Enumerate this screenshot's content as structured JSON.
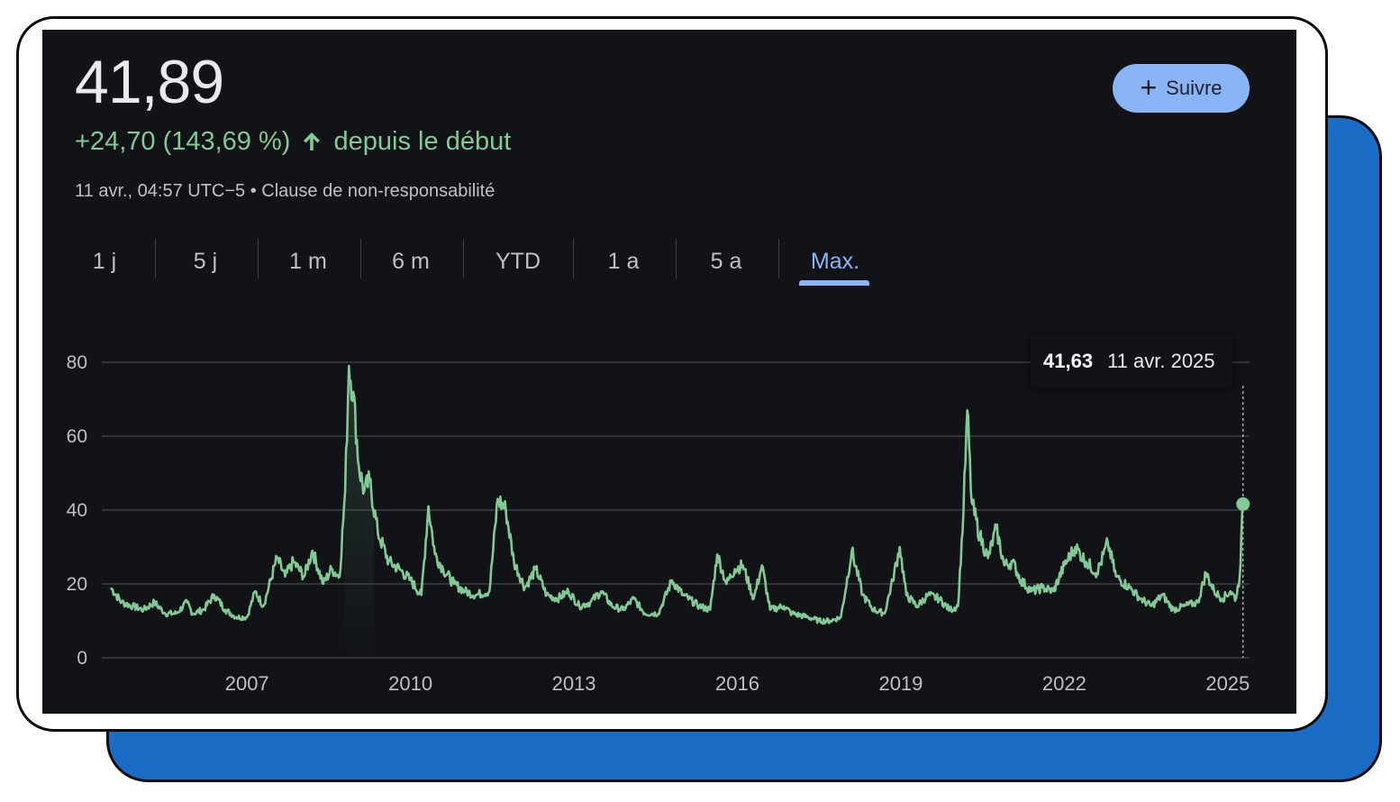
{
  "quote": {
    "price": "41,89",
    "change": "+24,70 (143,69 %)",
    "change_suffix": "depuis le début",
    "timestamp": "11 avr., 04:57 UTC−5 • Clause de non-responsabilité"
  },
  "follow_button": {
    "label": "Suivre",
    "icon": "plus-icon"
  },
  "range_tabs": [
    "1 j",
    "5 j",
    "1 m",
    "6 m",
    "YTD",
    "1 a",
    "5 a",
    "Max."
  ],
  "active_tab": "Max.",
  "tooltip": {
    "value": "41,63",
    "date": "11 avr. 2025"
  },
  "colors": {
    "line": "#81c995",
    "positive": "#81c995",
    "accent": "#8ab4f8",
    "background": "#111317",
    "grid": "#3c4043"
  },
  "chart_data": {
    "type": "line",
    "title": "",
    "xlabel": "",
    "ylabel": "",
    "ylim": [
      0,
      80
    ],
    "xlim": [
      2004.5,
      2025.4
    ],
    "y_ticks": [
      0,
      20,
      40,
      60,
      80
    ],
    "x_ticks": [
      "2007",
      "2010",
      "2013",
      "2016",
      "2019",
      "2022",
      "2025"
    ],
    "grid": "horizontal",
    "series": [
      {
        "values": [
          [
            2004.5,
            19
          ],
          [
            2004.7,
            15
          ],
          [
            2004.9,
            14
          ],
          [
            2005.1,
            13
          ],
          [
            2005.3,
            15
          ],
          [
            2005.5,
            12
          ],
          [
            2005.7,
            12
          ],
          [
            2005.9,
            15
          ],
          [
            2006.0,
            12
          ],
          [
            2006.2,
            13
          ],
          [
            2006.4,
            17
          ],
          [
            2006.6,
            13
          ],
          [
            2006.8,
            11
          ],
          [
            2007.0,
            11
          ],
          [
            2007.15,
            18
          ],
          [
            2007.3,
            14
          ],
          [
            2007.55,
            27
          ],
          [
            2007.7,
            22
          ],
          [
            2007.85,
            26
          ],
          [
            2008.05,
            22
          ],
          [
            2008.2,
            29
          ],
          [
            2008.4,
            20
          ],
          [
            2008.55,
            24
          ],
          [
            2008.7,
            22
          ],
          [
            2008.8,
            45
          ],
          [
            2008.87,
            79
          ],
          [
            2008.95,
            72
          ],
          [
            2009.05,
            52
          ],
          [
            2009.15,
            45
          ],
          [
            2009.25,
            48
          ],
          [
            2009.4,
            34
          ],
          [
            2009.6,
            26
          ],
          [
            2009.8,
            24
          ],
          [
            2010.0,
            21
          ],
          [
            2010.2,
            17
          ],
          [
            2010.33,
            41
          ],
          [
            2010.45,
            28
          ],
          [
            2010.6,
            24
          ],
          [
            2010.8,
            20
          ],
          [
            2011.0,
            18
          ],
          [
            2011.2,
            17
          ],
          [
            2011.45,
            18
          ],
          [
            2011.6,
            43
          ],
          [
            2011.75,
            40
          ],
          [
            2011.9,
            26
          ],
          [
            2012.1,
            19
          ],
          [
            2012.3,
            24
          ],
          [
            2012.5,
            17
          ],
          [
            2012.7,
            16
          ],
          [
            2012.9,
            18
          ],
          [
            2013.1,
            14
          ],
          [
            2013.3,
            15
          ],
          [
            2013.5,
            18
          ],
          [
            2013.7,
            14
          ],
          [
            2013.9,
            13
          ],
          [
            2014.1,
            16
          ],
          [
            2014.3,
            12
          ],
          [
            2014.55,
            12
          ],
          [
            2014.8,
            21
          ],
          [
            2015.0,
            17
          ],
          [
            2015.3,
            14
          ],
          [
            2015.5,
            13
          ],
          [
            2015.63,
            28
          ],
          [
            2015.8,
            20
          ],
          [
            2015.95,
            24
          ],
          [
            2016.1,
            25
          ],
          [
            2016.3,
            16
          ],
          [
            2016.45,
            25
          ],
          [
            2016.6,
            13
          ],
          [
            2016.85,
            14
          ],
          [
            2017.0,
            12
          ],
          [
            2017.3,
            11
          ],
          [
            2017.5,
            10
          ],
          [
            2017.7,
            10
          ],
          [
            2017.9,
            11
          ],
          [
            2018.1,
            29
          ],
          [
            2018.3,
            17
          ],
          [
            2018.5,
            13
          ],
          [
            2018.7,
            12
          ],
          [
            2018.85,
            21
          ],
          [
            2018.98,
            30
          ],
          [
            2019.1,
            17
          ],
          [
            2019.3,
            14
          ],
          [
            2019.5,
            17
          ],
          [
            2019.7,
            16
          ],
          [
            2019.9,
            13
          ],
          [
            2020.05,
            14
          ],
          [
            2020.15,
            40
          ],
          [
            2020.22,
            67
          ],
          [
            2020.3,
            42
          ],
          [
            2020.45,
            33
          ],
          [
            2020.6,
            27
          ],
          [
            2020.75,
            35
          ],
          [
            2020.9,
            25
          ],
          [
            2021.05,
            26
          ],
          [
            2021.2,
            21
          ],
          [
            2021.4,
            18
          ],
          [
            2021.6,
            19
          ],
          [
            2021.8,
            18
          ],
          [
            2022.0,
            25
          ],
          [
            2022.2,
            30
          ],
          [
            2022.4,
            26
          ],
          [
            2022.6,
            23
          ],
          [
            2022.8,
            31
          ],
          [
            2022.95,
            22
          ],
          [
            2023.2,
            19
          ],
          [
            2023.4,
            16
          ],
          [
            2023.6,
            14
          ],
          [
            2023.8,
            17
          ],
          [
            2024.0,
            13
          ],
          [
            2024.2,
            14
          ],
          [
            2024.45,
            15
          ],
          [
            2024.6,
            23
          ],
          [
            2024.75,
            18
          ],
          [
            2024.9,
            16
          ],
          [
            2025.05,
            18
          ],
          [
            2025.15,
            16
          ],
          [
            2025.22,
            22
          ],
          [
            2025.28,
            41.63
          ]
        ]
      }
    ]
  }
}
